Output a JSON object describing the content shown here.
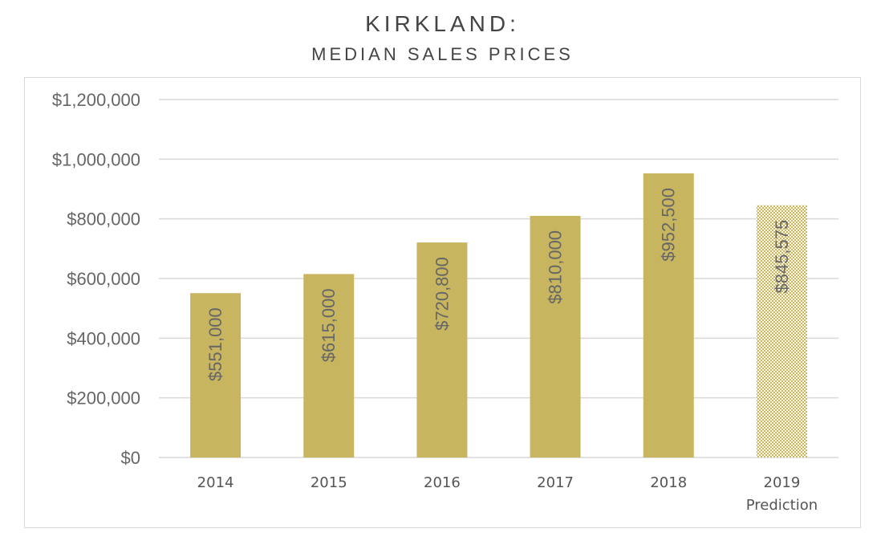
{
  "chart_data": {
    "type": "bar",
    "title": "KIRKLAND:",
    "subtitle": "MEDIAN SALES PRICES",
    "xlabel": "",
    "ylabel": "",
    "ylim": [
      0,
      1200000
    ],
    "ytick_values": [
      0,
      200000,
      400000,
      600000,
      800000,
      1000000,
      1200000
    ],
    "ytick_labels": [
      "$0",
      "$200,000",
      "$400,000",
      "$600,000",
      "$800,000",
      "$1,000,000",
      "$1,200,000"
    ],
    "grid": true,
    "categories": [
      {
        "line1": "2014",
        "line2": ""
      },
      {
        "line1": "2015",
        "line2": ""
      },
      {
        "line1": "2016",
        "line2": ""
      },
      {
        "line1": "2017",
        "line2": ""
      },
      {
        "line1": "2018",
        "line2": ""
      },
      {
        "line1": "2019",
        "line2": "Prediction"
      }
    ],
    "values": [
      551000,
      615000,
      720800,
      810000,
      952500,
      845575
    ],
    "data_labels": [
      "$551,000",
      "$615,000",
      "$720,800",
      "$810,000",
      "$952,500",
      "$845,575"
    ],
    "predicted": [
      false,
      false,
      false,
      false,
      false,
      true
    ],
    "colors": {
      "bar": "#c8b560",
      "pattern_bg": "#fbf8ea",
      "grid": "#d9d9d9",
      "label": "#666666"
    }
  }
}
